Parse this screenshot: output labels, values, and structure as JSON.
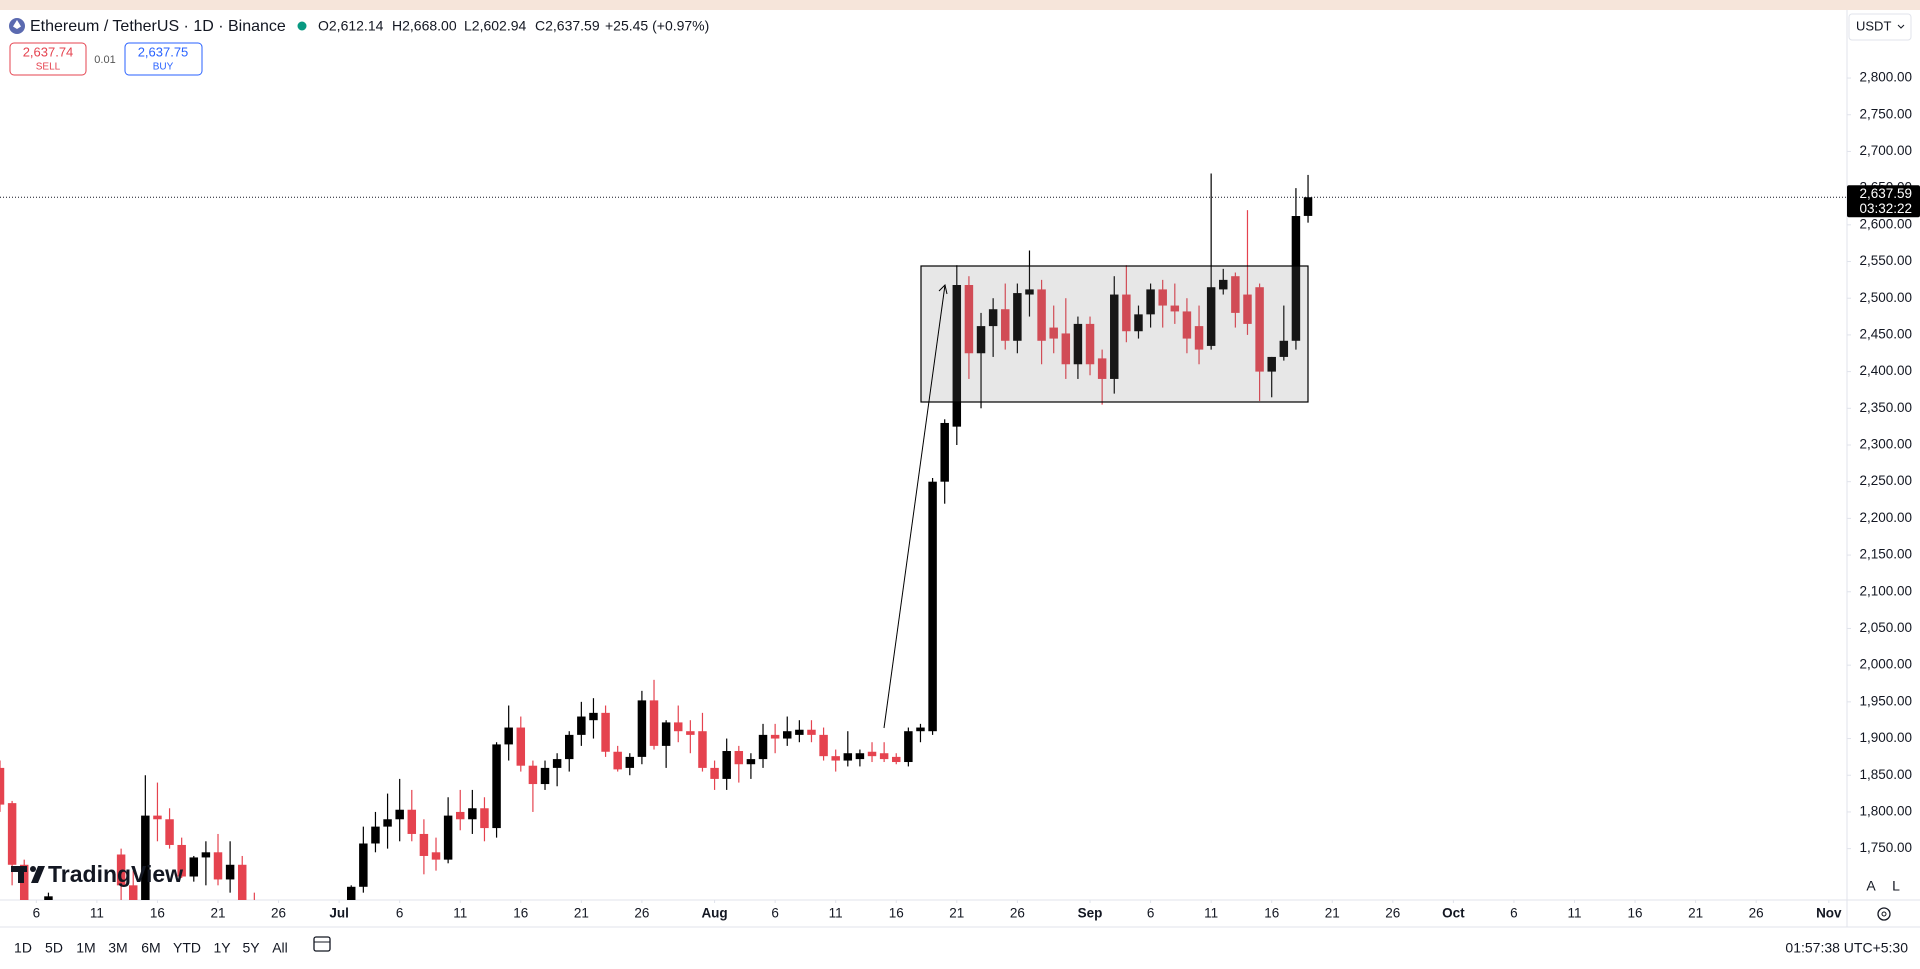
{
  "header": {
    "symbol": "Ethereum / TetherUS · 1D · Binance",
    "ohlc": [
      "O2,612.14",
      "H2,668.00",
      "L2,602.94",
      "C2,637.59",
      "+25.45 (+0.97%)"
    ],
    "sell_price": "2,637.74",
    "sell_label": "SELL",
    "spread": "0.01",
    "buy_price": "2,637.75",
    "buy_label": "BUY",
    "currency": "USDT"
  },
  "chart_data": {
    "type": "candlestick",
    "up_color": "#000000",
    "down_color": "#e5434f",
    "grid": false,
    "x": [
      -27,
      -26,
      -25,
      -23,
      -17,
      -16,
      -15,
      -14,
      -13,
      -12,
      -11,
      -10,
      -9,
      -8,
      -7,
      -6,
      2,
      3,
      4,
      5,
      6,
      7,
      8,
      9,
      10,
      11,
      12,
      13,
      14,
      15,
      16,
      17,
      18,
      19,
      20,
      21,
      22,
      23,
      24,
      25,
      26,
      27,
      28,
      29,
      30,
      31,
      32,
      33,
      34,
      35,
      36,
      37,
      38,
      39,
      40,
      41,
      42,
      43,
      44,
      45,
      46,
      47,
      48,
      49,
      50,
      51,
      52,
      53,
      54,
      55,
      56,
      57,
      58,
      59,
      60,
      61,
      62,
      63,
      64,
      65,
      66,
      67,
      68,
      69,
      70,
      71,
      72,
      73,
      74,
      75,
      76,
      77,
      78,
      79,
      80,
      81
    ],
    "open": [
      1860,
      1812,
      1728,
      1670,
      1742,
      1700,
      1670,
      1795,
      1790,
      1755,
      1712,
      1738,
      1745,
      1708,
      1728,
      1675,
      1660,
      1698,
      1757,
      1780,
      1790,
      1803,
      1770,
      1745,
      1735,
      1800,
      1790,
      1805,
      1778,
      1892,
      1915,
      1863,
      1838,
      1860,
      1872,
      1905,
      1925,
      1935,
      1882,
      1860,
      1875,
      1952,
      1890,
      1922,
      1910,
      1910,
      1860,
      1845,
      1883,
      1865,
      1872,
      1905,
      1900,
      1905,
      1912,
      1905,
      1876,
      1870,
      1872,
      1882,
      1880,
      1875,
      1868,
      1910,
      1910,
      2250,
      2325,
      2518,
      2425,
      2462,
      2485,
      2442,
      2505,
      2512,
      2460,
      2452,
      2410,
      2465,
      2418,
      2390,
      2505,
      2455,
      2478,
      2512,
      2490,
      2482,
      2462,
      2435,
      2512,
      2530,
      2505,
      2515,
      2400,
      2420,
      2442,
      2612.14
    ],
    "high": [
      1870,
      1815,
      1735,
      1690,
      1750,
      1720,
      1850,
      1840,
      1805,
      1765,
      1740,
      1760,
      1770,
      1760,
      1740,
      1690,
      1700,
      1780,
      1800,
      1825,
      1845,
      1830,
      1790,
      1765,
      1820,
      1830,
      1830,
      1820,
      1895,
      1945,
      1930,
      1870,
      1870,
      1880,
      1910,
      1950,
      1955,
      1945,
      1890,
      1880,
      1965,
      1980,
      1925,
      1945,
      1925,
      1935,
      1870,
      1900,
      1890,
      1880,
      1920,
      1920,
      1930,
      1925,
      1925,
      1915,
      1885,
      1910,
      1885,
      1895,
      1895,
      1880,
      1915,
      1920,
      2255,
      2335,
      2545,
      2530,
      2480,
      2500,
      2520,
      2520,
      2565,
      2525,
      2490,
      2500,
      2475,
      2475,
      2430,
      2530,
      2545,
      2490,
      2520,
      2525,
      2520,
      2500,
      2490,
      2670,
      2540,
      2535,
      2620,
      2520,
      2420,
      2490,
      2650,
      2668
    ],
    "low": [
      1800,
      1700,
      1650,
      1640,
      1660,
      1660,
      1665,
      1760,
      1750,
      1710,
      1705,
      1700,
      1700,
      1690,
      1660,
      1640,
      1650,
      1690,
      1745,
      1750,
      1760,
      1760,
      1715,
      1720,
      1730,
      1775,
      1770,
      1760,
      1765,
      1870,
      1855,
      1800,
      1830,
      1835,
      1855,
      1890,
      1900,
      1875,
      1855,
      1850,
      1865,
      1885,
      1860,
      1895,
      1880,
      1855,
      1830,
      1830,
      1840,
      1845,
      1860,
      1880,
      1890,
      1895,
      1895,
      1870,
      1855,
      1862,
      1862,
      1868,
      1868,
      1865,
      1862,
      1895,
      1905,
      2220,
      2300,
      2390,
      2350,
      2420,
      2430,
      2425,
      2475,
      2410,
      2425,
      2390,
      2390,
      2395,
      2355,
      2370,
      2440,
      2445,
      2460,
      2460,
      2465,
      2425,
      2410,
      2430,
      2505,
      2460,
      2450,
      2360,
      2365,
      2415,
      2430,
      2602.94
    ],
    "close": [
      1810,
      1728,
      1660,
      1685,
      1700,
      1670,
      1795,
      1790,
      1755,
      1712,
      1738,
      1745,
      1708,
      1728,
      1675,
      1650,
      1698,
      1757,
      1780,
      1790,
      1803,
      1770,
      1740,
      1735,
      1795,
      1790,
      1805,
      1778,
      1892,
      1915,
      1863,
      1838,
      1860,
      1872,
      1905,
      1930,
      1935,
      1882,
      1858,
      1875,
      1952,
      1890,
      1922,
      1910,
      1905,
      1860,
      1845,
      1883,
      1865,
      1872,
      1905,
      1900,
      1910,
      1912,
      1905,
      1876,
      1870,
      1880,
      1880,
      1876,
      1872,
      1868,
      1910,
      1915,
      2250,
      2330,
      2518,
      2425,
      2462,
      2485,
      2442,
      2507,
      2512,
      2442,
      2445,
      2410,
      2465,
      2410,
      2390,
      2505,
      2455,
      2478,
      2512,
      2490,
      2482,
      2445,
      2430,
      2515,
      2525,
      2480,
      2465,
      2400,
      2420,
      2442,
      2612,
      2637.59
    ],
    "xlim": [
      -27,
      125.5
    ],
    "xticks": [
      {
        "value": -24,
        "label": "6"
      },
      {
        "value": -19,
        "label": "11"
      },
      {
        "value": -14,
        "label": "16"
      },
      {
        "value": -9,
        "label": "21"
      },
      {
        "value": -4,
        "label": "26"
      },
      {
        "value": 1,
        "label": "Jul"
      },
      {
        "value": 6,
        "label": "6"
      },
      {
        "value": 11,
        "label": "11"
      },
      {
        "value": 16,
        "label": "16"
      },
      {
        "value": 21,
        "label": "21"
      },
      {
        "value": 26,
        "label": "26"
      },
      {
        "value": 32,
        "label": "Aug"
      },
      {
        "value": 37,
        "label": "6"
      },
      {
        "value": 42,
        "label": "11"
      },
      {
        "value": 47,
        "label": "16"
      },
      {
        "value": 52,
        "label": "21"
      },
      {
        "value": 57,
        "label": "26"
      },
      {
        "value": 63,
        "label": "Sep"
      },
      {
        "value": 68,
        "label": "6"
      },
      {
        "value": 73,
        "label": "11"
      },
      {
        "value": 78,
        "label": "16"
      },
      {
        "value": 83,
        "label": "21"
      },
      {
        "value": 88,
        "label": "26"
      },
      {
        "value": 93,
        "label": "Oct"
      },
      {
        "value": 98,
        "label": "6"
      },
      {
        "value": 103,
        "label": "11"
      },
      {
        "value": 108,
        "label": "16"
      },
      {
        "value": 113,
        "label": "21"
      },
      {
        "value": 118,
        "label": "26"
      },
      {
        "value": 124,
        "label": "Nov"
      }
    ],
    "ylim": [
      1680,
      2890
    ],
    "yticks": [
      {
        "value": 1750,
        "label": "1,750.00"
      },
      {
        "value": 1800,
        "label": "1,800.00"
      },
      {
        "value": 1850,
        "label": "1,850.00"
      },
      {
        "value": 1900,
        "label": "1,900.00"
      },
      {
        "value": 1950,
        "label": "1,950.00"
      },
      {
        "value": 2000,
        "label": "2,000.00"
      },
      {
        "value": 2050,
        "label": "2,050.00"
      },
      {
        "value": 2100,
        "label": "2,100.00"
      },
      {
        "value": 2150,
        "label": "2,150.00"
      },
      {
        "value": 2200,
        "label": "2,200.00"
      },
      {
        "value": 2250,
        "label": "2,250.00"
      },
      {
        "value": 2300,
        "label": "2,300.00"
      },
      {
        "value": 2350,
        "label": "2,350.00"
      },
      {
        "value": 2400,
        "label": "2,400.00"
      },
      {
        "value": 2450,
        "label": "2,450.00"
      },
      {
        "value": 2500,
        "label": "2,500.00"
      },
      {
        "value": 2550,
        "label": "2,550.00"
      },
      {
        "value": 2600,
        "label": "2,600.00"
      },
      {
        "value": 2650,
        "label": "2,650.00"
      },
      {
        "value": 2700,
        "label": "2,700.00"
      },
      {
        "value": 2750,
        "label": "2,750.00"
      },
      {
        "value": 2800,
        "label": "2,800.00"
      }
    ],
    "last_price": {
      "value": 2637.59,
      "label": "2,637.59"
    },
    "countdown": "03:32:22"
  },
  "watermark": "TradingView",
  "scale_buttons": [
    "A",
    "L"
  ],
  "toolbar": {
    "ranges": [
      "1D",
      "5D",
      "1M",
      "3M",
      "6M",
      "YTD",
      "1Y",
      "5Y",
      "All"
    ],
    "clock": "01:57:38 UTC+5:30"
  }
}
